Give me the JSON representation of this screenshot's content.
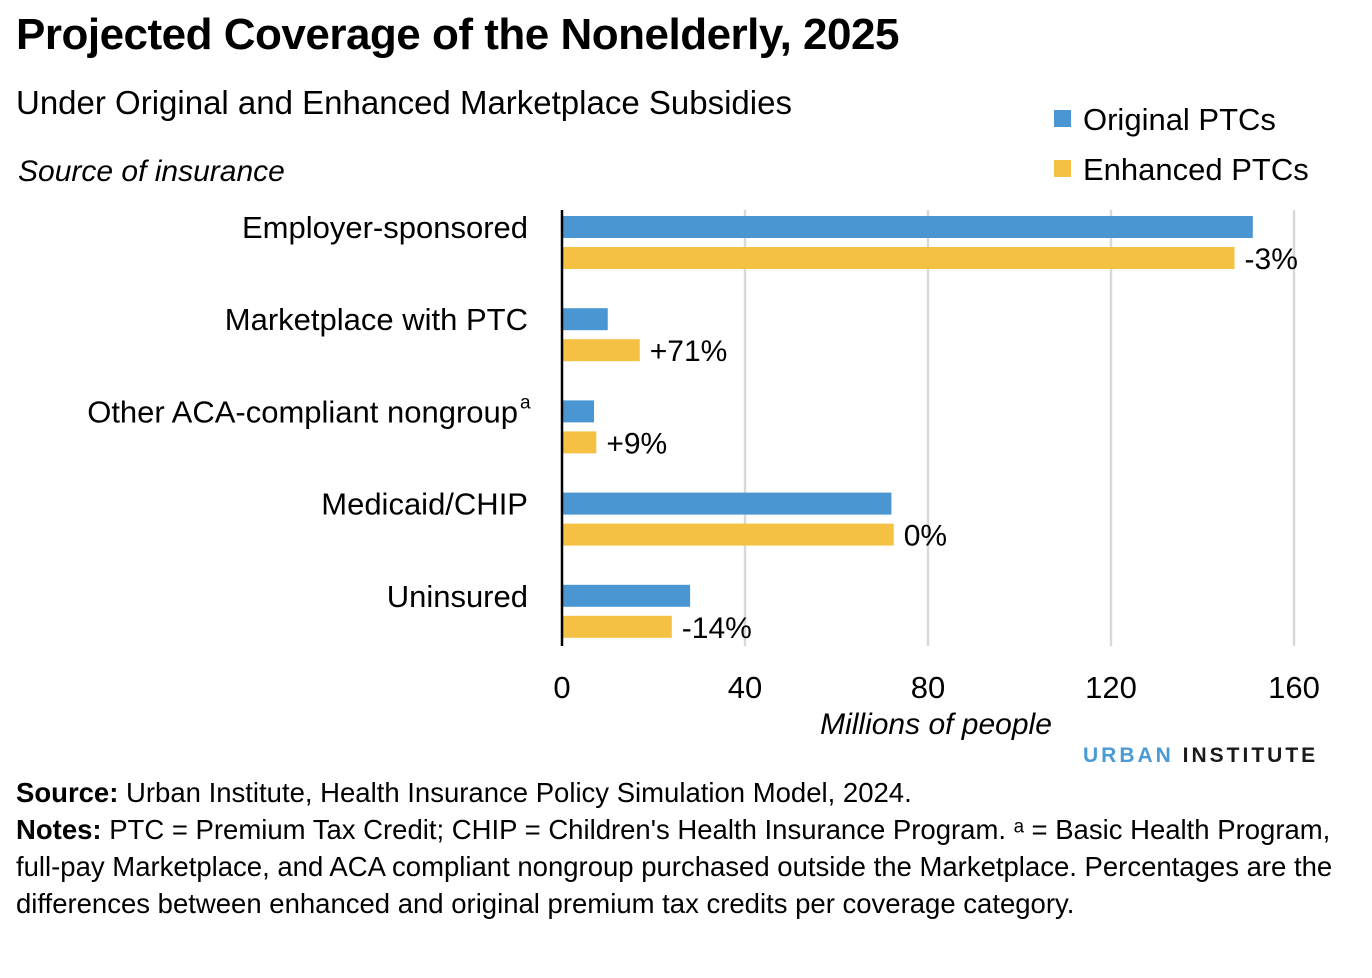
{
  "title": "Projected Coverage of the Nonelderly, 2025",
  "subtitle": "Under Original and Enhanced Marketplace Subsidies",
  "brand": {
    "part1": "URBAN",
    "part2": "INSTITUTE"
  },
  "footer": {
    "source_label": "Source:",
    "source_text": "Urban Institute, Health Insurance Policy Simulation Model, 2024.",
    "notes_label": "Notes:",
    "notes_text": "PTC = Premium Tax Credit; CHIP = Children's Health Insurance Program. ᵃ = Basic Health Program, full-pay Marketplace, and ACA compliant nongroup purchased outside the Marketplace. Percentages are the differences between enhanced and original premium tax credits per coverage category."
  },
  "colors": {
    "original": "#4a96d2",
    "enhanced": "#f4c142",
    "grid": "#d9d9d9",
    "axis": "#000000"
  },
  "chart_data": {
    "type": "bar",
    "orientation": "horizontal",
    "ylabel": "Source of insurance",
    "xlabel": "Millions of people",
    "xlim": [
      0,
      160
    ],
    "xticks": [
      "0",
      "40",
      "80",
      "120",
      "160"
    ],
    "grid": true,
    "legend_position": "top-right",
    "categories": [
      "Employer-sponsored",
      "Marketplace with PTC",
      "Other ACA-compliant nongroup",
      "Medicaid/CHIP",
      "Uninsured"
    ],
    "category_superscripts": [
      "",
      "",
      "a",
      "",
      ""
    ],
    "series": [
      {
        "name": "Original PTCs",
        "values": [
          151,
          10,
          7,
          72,
          28
        ]
      },
      {
        "name": "Enhanced PTCs",
        "values": [
          147,
          17,
          7.5,
          72.5,
          24
        ]
      }
    ],
    "annotations": [
      "-3%",
      "+71%",
      "+9%",
      "0%",
      "-14%"
    ]
  }
}
